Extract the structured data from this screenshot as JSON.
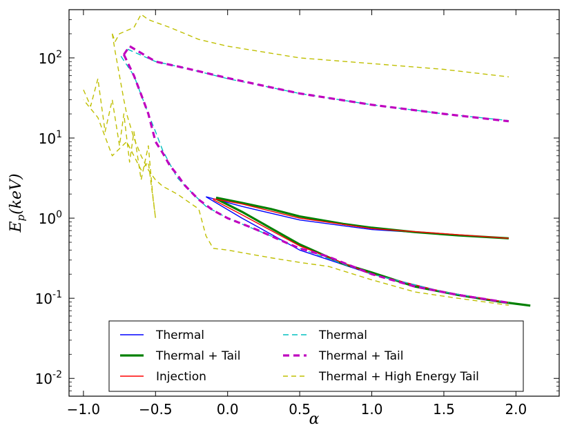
{
  "chart_data": {
    "type": "line",
    "title": "",
    "xlabel": "α",
    "ylabel": "E_p(keV)",
    "ylabel_parts": {
      "base": "E",
      "sub": "p",
      "rest": "(keV)"
    },
    "xlim": [
      -1.1,
      2.3
    ],
    "ylim": [
      0.006,
      400
    ],
    "yscale": "log",
    "xticks": [
      -1.0,
      -0.5,
      0.0,
      0.5,
      1.0,
      1.5,
      2.0
    ],
    "xtick_labels": [
      "−1.0",
      "−0.5",
      "0.0",
      "0.5",
      "1.0",
      "1.5",
      "2.0"
    ],
    "yticks": [
      0.01,
      0.1,
      1,
      10,
      100
    ],
    "ytick_labels": [
      {
        "base": "10",
        "exp": "-2"
      },
      {
        "base": "10",
        "exp": "-1"
      },
      {
        "base": "10",
        "exp": "0"
      },
      {
        "base": "10",
        "exp": "1"
      },
      {
        "base": "10",
        "exp": "2"
      }
    ],
    "grid": false,
    "legend_position": "lower-center",
    "series": [
      {
        "name": "Thermal",
        "color": "#0000ff",
        "width": 1.4,
        "dash": "",
        "lines": [
          [
            [
              -0.15,
              1.85
            ],
            [
              0.1,
              1.4
            ],
            [
              0.5,
              0.95
            ],
            [
              1.0,
              0.72
            ],
            [
              1.5,
              0.63
            ],
            [
              1.95,
              0.56
            ]
          ],
          [
            [
              -0.15,
              1.85
            ],
            [
              0.1,
              1.0
            ],
            [
              0.5,
              0.4
            ],
            [
              1.0,
              0.2
            ],
            [
              1.5,
              0.12
            ],
            [
              1.95,
              0.088
            ]
          ]
        ]
      },
      {
        "name": "Thermal + Tail",
        "color": "#008000",
        "width": 3.2,
        "dash": "",
        "lines": [
          [
            [
              -0.08,
              1.8
            ],
            [
              0.1,
              1.55
            ],
            [
              0.3,
              1.3
            ],
            [
              0.5,
              1.05
            ],
            [
              0.8,
              0.85
            ],
            [
              1.0,
              0.76
            ],
            [
              1.3,
              0.67
            ],
            [
              1.6,
              0.61
            ],
            [
              1.95,
              0.56
            ]
          ],
          [
            [
              -0.08,
              1.75
            ],
            [
              0.1,
              1.2
            ],
            [
              0.3,
              0.75
            ],
            [
              0.5,
              0.47
            ],
            [
              0.8,
              0.27
            ],
            [
              1.0,
              0.21
            ],
            [
              1.3,
              0.14
            ],
            [
              1.6,
              0.11
            ],
            [
              1.9,
              0.09
            ],
            [
              2.1,
              0.081
            ]
          ]
        ]
      },
      {
        "name": "Injection",
        "color": "#ff0000",
        "width": 1.4,
        "dash": "",
        "lines": [
          [
            [
              -0.1,
              1.75
            ],
            [
              0.1,
              1.5
            ],
            [
              0.5,
              1.0
            ],
            [
              1.0,
              0.74
            ],
            [
              1.5,
              0.64
            ],
            [
              1.95,
              0.56
            ]
          ],
          [
            [
              -0.1,
              1.7
            ],
            [
              0.1,
              1.1
            ],
            [
              0.5,
              0.45
            ],
            [
              1.0,
              0.2
            ],
            [
              1.5,
              0.12
            ],
            [
              1.95,
              0.088
            ]
          ]
        ]
      },
      {
        "name": "Thermal",
        "color": "#00bfbf",
        "width": 1.4,
        "dash": "8,5",
        "lines": [
          [
            [
              -0.72,
              105
            ],
            [
              -0.7,
              130
            ],
            [
              -0.5,
              90
            ],
            [
              -0.3,
              75
            ],
            [
              0.0,
              55
            ],
            [
              0.5,
              36
            ],
            [
              1.0,
              26
            ],
            [
              1.5,
              20
            ],
            [
              1.95,
              16.5
            ]
          ],
          [
            [
              -0.74,
              105
            ],
            [
              -0.65,
              60
            ],
            [
              -0.55,
              20
            ],
            [
              -0.5,
              12
            ],
            [
              -0.45,
              7
            ],
            [
              -0.35,
              3.2
            ],
            [
              -0.25,
              2.1
            ],
            [
              -0.15,
              1.4
            ],
            [
              0.0,
              1.0
            ],
            [
              0.3,
              0.6
            ],
            [
              0.5,
              0.42
            ],
            [
              1.0,
              0.2
            ],
            [
              1.5,
              0.12
            ],
            [
              1.95,
              0.088
            ]
          ]
        ]
      },
      {
        "name": "Thermal + Tail",
        "color": "#bf00bf",
        "width": 3.2,
        "dash": "9,6",
        "lines": [
          [
            [
              -0.72,
              110
            ],
            [
              -0.68,
              140
            ],
            [
              -0.5,
              90
            ],
            [
              -0.3,
              75
            ],
            [
              0.0,
              56
            ],
            [
              0.5,
              36
            ],
            [
              1.0,
              26
            ],
            [
              1.5,
              20
            ],
            [
              1.95,
              16.2
            ]
          ],
          [
            [
              -0.72,
              110
            ],
            [
              -0.65,
              60
            ],
            [
              -0.6,
              35
            ],
            [
              -0.55,
              20
            ],
            [
              -0.5,
              9
            ],
            [
              -0.45,
              6.5
            ],
            [
              -0.4,
              4.5
            ],
            [
              -0.35,
              3.5
            ],
            [
              -0.3,
              2.6
            ],
            [
              -0.25,
              2.1
            ],
            [
              -0.2,
              1.7
            ],
            [
              -0.1,
              1.25
            ],
            [
              0.0,
              1.0
            ],
            [
              0.2,
              0.72
            ],
            [
              0.4,
              0.5
            ],
            [
              0.5,
              0.42
            ],
            [
              0.7,
              0.33
            ],
            [
              1.0,
              0.2
            ],
            [
              1.3,
              0.14
            ],
            [
              1.6,
              0.11
            ],
            [
              1.95,
              0.088
            ]
          ]
        ]
      },
      {
        "name": "Thermal + High Energy Tail",
        "color": "#bfbf00",
        "width": 1.4,
        "dash": "7,5",
        "lines": [
          [
            [
              -0.8,
              200
            ],
            [
              -0.78,
              160
            ],
            [
              -0.75,
              200
            ],
            [
              -0.65,
              240
            ],
            [
              -0.6,
              350
            ],
            [
              -0.55,
              300
            ],
            [
              -0.4,
              240
            ],
            [
              -0.2,
              170
            ],
            [
              0.0,
              140
            ],
            [
              0.5,
              100
            ],
            [
              1.0,
              85
            ],
            [
              1.5,
              72
            ],
            [
              1.95,
              58
            ]
          ],
          [
            [
              -0.8,
              200
            ],
            [
              -0.78,
              120
            ],
            [
              -0.75,
              60
            ],
            [
              -0.72,
              30
            ],
            [
              -0.7,
              20
            ],
            [
              -0.65,
              10
            ],
            [
              -0.6,
              6
            ],
            [
              -0.55,
              4
            ],
            [
              -0.5,
              3
            ],
            [
              -0.45,
              2.5
            ],
            [
              -0.35,
              2.0
            ],
            [
              -0.2,
              1.3
            ],
            [
              -0.15,
              0.6
            ],
            [
              -0.1,
              0.42
            ],
            [
              0.0,
              0.4
            ],
            [
              0.3,
              0.32
            ],
            [
              0.5,
              0.28
            ],
            [
              0.7,
              0.25
            ],
            [
              1.0,
              0.17
            ],
            [
              1.3,
              0.12
            ],
            [
              1.6,
              0.1
            ],
            [
              1.95,
              0.082
            ]
          ],
          [
            [
              -1.0,
              40
            ],
            [
              -0.95,
              25
            ],
            [
              -0.9,
              55
            ],
            [
              -0.85,
              12
            ],
            [
              -0.8,
              30
            ],
            [
              -0.75,
              8
            ],
            [
              -0.72,
              20
            ],
            [
              -0.68,
              5
            ],
            [
              -0.65,
              12
            ],
            [
              -0.6,
              3
            ],
            [
              -0.55,
              8
            ],
            [
              -0.52,
              2
            ],
            [
              -0.5,
              1.0
            ],
            [
              -0.55,
              5
            ],
            [
              -0.6,
              4
            ],
            [
              -0.7,
              9
            ],
            [
              -0.8,
              6
            ],
            [
              -0.9,
              18
            ],
            [
              -1.0,
              30
            ]
          ]
        ]
      }
    ],
    "legend_order": [
      0,
      3,
      1,
      4,
      2,
      5
    ]
  }
}
